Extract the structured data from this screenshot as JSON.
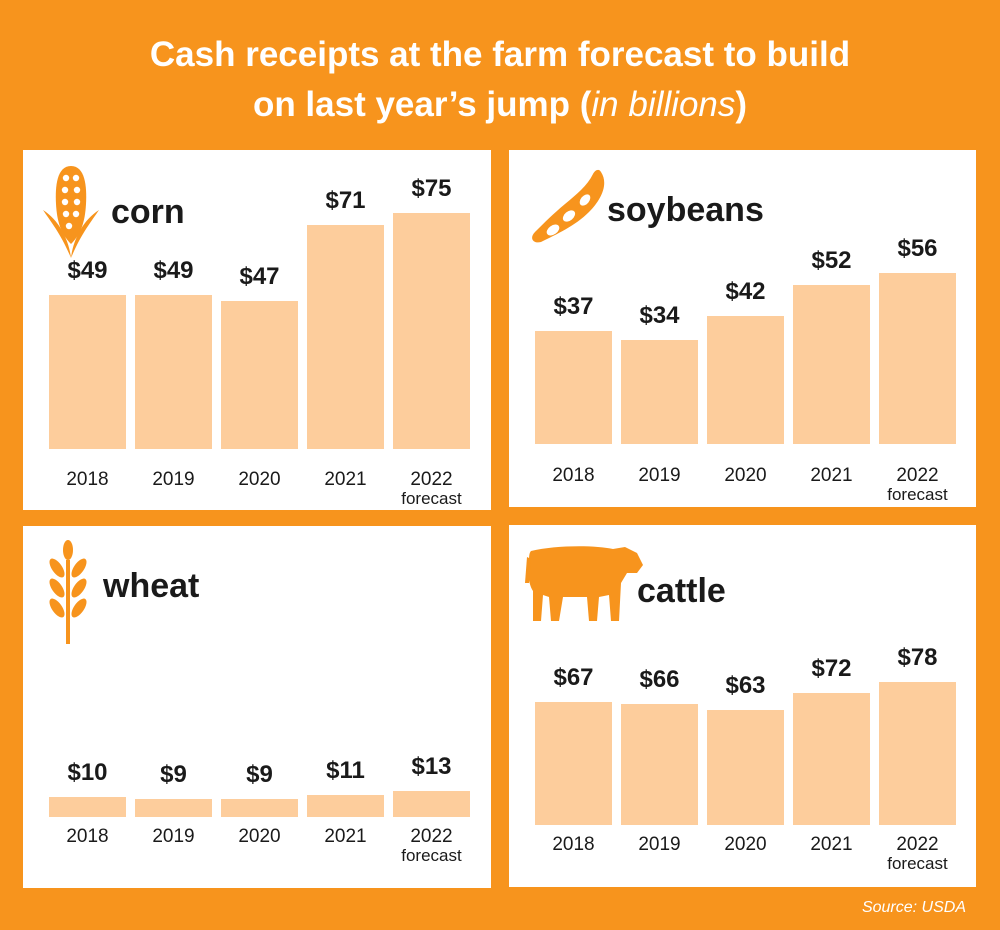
{
  "title": {
    "line1": "Cash receipts at the farm forecast to build",
    "line2": "on last year’s jump",
    "paren_open": " (",
    "italic": "in billions",
    "paren_close": ")"
  },
  "source": "Source: USDA",
  "colors": {
    "background": "#F7941D",
    "bar": "#FDCD9C",
    "icon": "#F7941D"
  },
  "chart_data": [
    {
      "type": "bar",
      "title": "corn",
      "icon": "corn-icon",
      "categories": [
        "2018",
        "2019",
        "2020",
        "2021",
        "2022"
      ],
      "category_sublabels": [
        "",
        "",
        "",
        "",
        "forecast"
      ],
      "values": [
        49,
        49,
        47,
        71,
        75
      ],
      "value_labels": [
        "$49",
        "$49",
        "$47",
        "$71",
        "$75"
      ],
      "unit": "billions of dollars"
    },
    {
      "type": "bar",
      "title": "soybeans",
      "icon": "soybean-icon",
      "categories": [
        "2018",
        "2019",
        "2020",
        "2021",
        "2022"
      ],
      "category_sublabels": [
        "",
        "",
        "",
        "",
        "forecast"
      ],
      "values": [
        37,
        34,
        42,
        52,
        56
      ],
      "value_labels": [
        "$37",
        "$34",
        "$42",
        "$52",
        "$56"
      ],
      "unit": "billions of dollars"
    },
    {
      "type": "bar",
      "title": "wheat",
      "icon": "wheat-icon",
      "categories": [
        "2018",
        "2019",
        "2020",
        "2021",
        "2022"
      ],
      "category_sublabels": [
        "",
        "",
        "",
        "",
        "forecast"
      ],
      "values": [
        10,
        9,
        9,
        11,
        13
      ],
      "value_labels": [
        "$10",
        "$9",
        "$9",
        "$11",
        "$13"
      ],
      "unit": "billions of dollars"
    },
    {
      "type": "bar",
      "title": "cattle",
      "icon": "cattle-icon",
      "categories": [
        "2018",
        "2019",
        "2020",
        "2021",
        "2022"
      ],
      "category_sublabels": [
        "",
        "",
        "",
        "",
        "forecast"
      ],
      "values": [
        67,
        66,
        63,
        72,
        78
      ],
      "value_labels": [
        "$67",
        "$66",
        "$63",
        "$72",
        "$78"
      ],
      "unit": "billions of dollars"
    }
  ]
}
